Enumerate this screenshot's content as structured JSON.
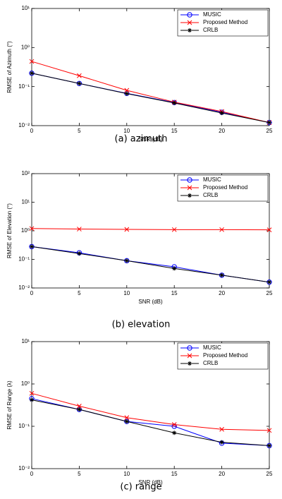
{
  "chart_data": [
    {
      "type": "line",
      "caption": "(a) azimuth",
      "xlabel": "SNR (dB)",
      "ylabel": "RMSE of Azimuth (°)",
      "x": [
        0,
        5,
        10,
        15,
        20,
        25
      ],
      "xlim": [
        0,
        25
      ],
      "xticks": [
        0,
        5,
        10,
        15,
        20,
        25
      ],
      "log_y": true,
      "ylim": [
        0.01,
        10
      ],
      "yticks": [
        {
          "value": 0.01,
          "label": "10⁻²"
        },
        {
          "value": 0.1,
          "label": "10⁻¹"
        },
        {
          "value": 1,
          "label": "10⁰"
        },
        {
          "value": 10,
          "label": "10¹"
        }
      ],
      "legend": "upper right",
      "series": [
        {
          "name": "MUSIC",
          "color": "#0000ff",
          "marker": "o",
          "values": [
            0.22,
            0.12,
            0.067,
            0.039,
            0.022,
            0.012
          ]
        },
        {
          "name": "Proposed Method",
          "color": "#ff0000",
          "marker": "x",
          "values": [
            0.44,
            0.19,
            0.08,
            0.04,
            0.023,
            0.012
          ]
        },
        {
          "name": "CRLB",
          "color": "#000000",
          "marker": "*",
          "values": [
            0.22,
            0.12,
            0.066,
            0.038,
            0.021,
            0.012
          ]
        }
      ]
    },
    {
      "type": "line",
      "caption": "(b) elevation",
      "xlabel": "SNR (dB)",
      "ylabel": "RMSE of Elevation (°)",
      "x": [
        0,
        5,
        10,
        15,
        20,
        25
      ],
      "xlim": [
        0,
        25
      ],
      "xticks": [
        0,
        5,
        10,
        15,
        20,
        25
      ],
      "log_y": true,
      "ylim": [
        0.01,
        100
      ],
      "yticks": [
        {
          "value": 0.01,
          "label": "10⁻²"
        },
        {
          "value": 0.1,
          "label": "10⁻¹"
        },
        {
          "value": 1,
          "label": "10⁰"
        },
        {
          "value": 10,
          "label": "10¹"
        },
        {
          "value": 100,
          "label": "10²"
        }
      ],
      "legend": "upper right",
      "series": [
        {
          "name": "MUSIC",
          "color": "#0000ff",
          "marker": "o",
          "values": [
            0.28,
            0.17,
            0.09,
            0.055,
            0.028,
            0.016
          ]
        },
        {
          "name": "Proposed Method",
          "color": "#ff0000",
          "marker": "x",
          "values": [
            1.2,
            1.15,
            1.12,
            1.1,
            1.1,
            1.08
          ]
        },
        {
          "name": "CRLB",
          "color": "#000000",
          "marker": "*",
          "values": [
            0.28,
            0.16,
            0.09,
            0.048,
            0.028,
            0.016
          ]
        }
      ]
    },
    {
      "type": "line",
      "caption": "(c) range",
      "xlabel": "SNR (dB)",
      "ylabel": "RMSE of Range (λ)",
      "x": [
        0,
        5,
        10,
        15,
        20,
        25
      ],
      "xlim": [
        0,
        25
      ],
      "xticks": [
        0,
        5,
        10,
        15,
        20,
        25
      ],
      "log_y": true,
      "ylim": [
        0.01,
        10
      ],
      "yticks": [
        {
          "value": 0.01,
          "label": "10⁻²"
        },
        {
          "value": 0.1,
          "label": "10⁻¹"
        },
        {
          "value": 1,
          "label": "10⁰"
        },
        {
          "value": 10,
          "label": "10¹"
        }
      ],
      "legend": "upper right",
      "series": [
        {
          "name": "MUSIC",
          "color": "#0000ff",
          "marker": "o",
          "values": [
            0.45,
            0.25,
            0.13,
            0.1,
            0.04,
            0.035
          ]
        },
        {
          "name": "Proposed Method",
          "color": "#ff0000",
          "marker": "x",
          "values": [
            0.6,
            0.3,
            0.16,
            0.11,
            0.085,
            0.08
          ]
        },
        {
          "name": "CRLB",
          "color": "#000000",
          "marker": "*",
          "values": [
            0.42,
            0.25,
            0.13,
            0.07,
            0.042,
            0.035
          ]
        }
      ]
    }
  ]
}
